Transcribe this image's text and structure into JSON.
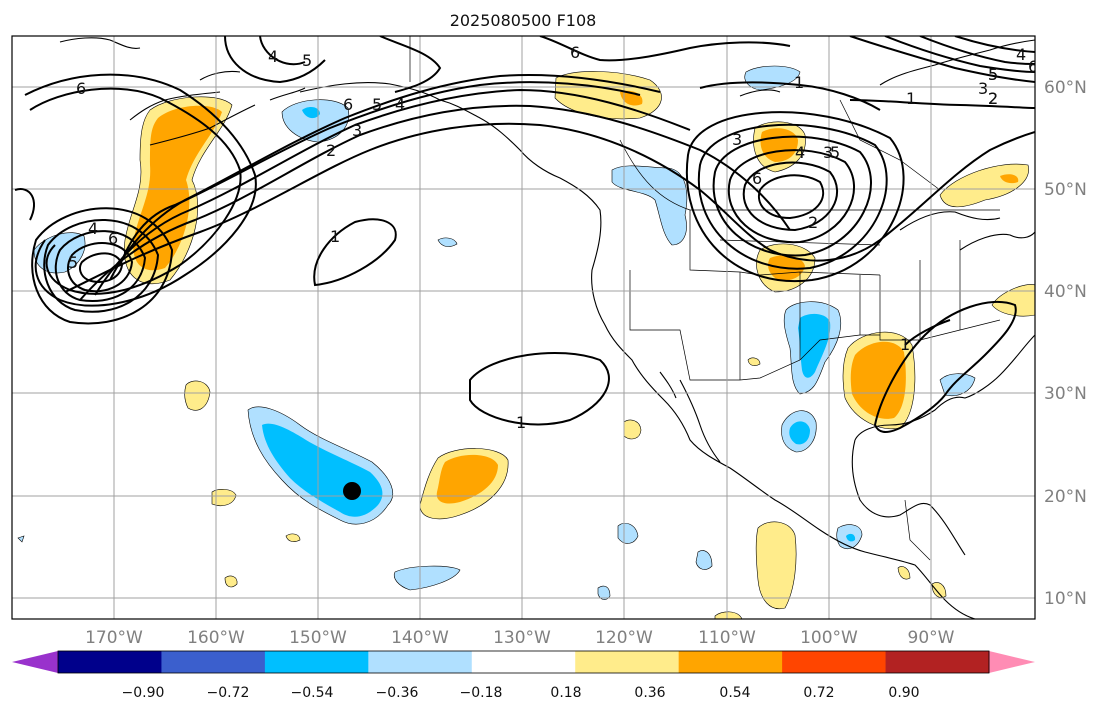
{
  "title": "2025080500 F108",
  "lon_ticks": [
    "170°W",
    "160°W",
    "150°W",
    "140°W",
    "130°W",
    "120°W",
    "110°W",
    "100°W",
    "90°W"
  ],
  "lat_ticks": [
    "60°N",
    "50°N",
    "40°N",
    "30°N",
    "20°N",
    "10°N"
  ],
  "colorbar": {
    "ticks": [
      "−0.90",
      "−0.72",
      "−0.54",
      "−0.36",
      "−0.18",
      "0.18",
      "0.36",
      "0.54",
      "0.72",
      "0.90"
    ],
    "colors": [
      "#9932cc",
      "#00008b",
      "#3b5fcd",
      "#00bfff",
      "#b0e0ff",
      "#ffffff",
      "#ffec8b",
      "#ffa500",
      "#ff4500",
      "#b22222",
      "#ff8cb4"
    ]
  },
  "contour_labels": [
    "4",
    "5",
    "6",
    "6",
    "5",
    "4",
    "3",
    "2",
    "6",
    "4",
    "5",
    "1",
    "1",
    "1",
    "6",
    "3",
    "2",
    "3",
    "4",
    "5",
    "6",
    "2",
    "5",
    "1",
    "1",
    "2",
    "3",
    "4",
    "5",
    "6"
  ],
  "marker": {
    "name": "black dot"
  }
}
